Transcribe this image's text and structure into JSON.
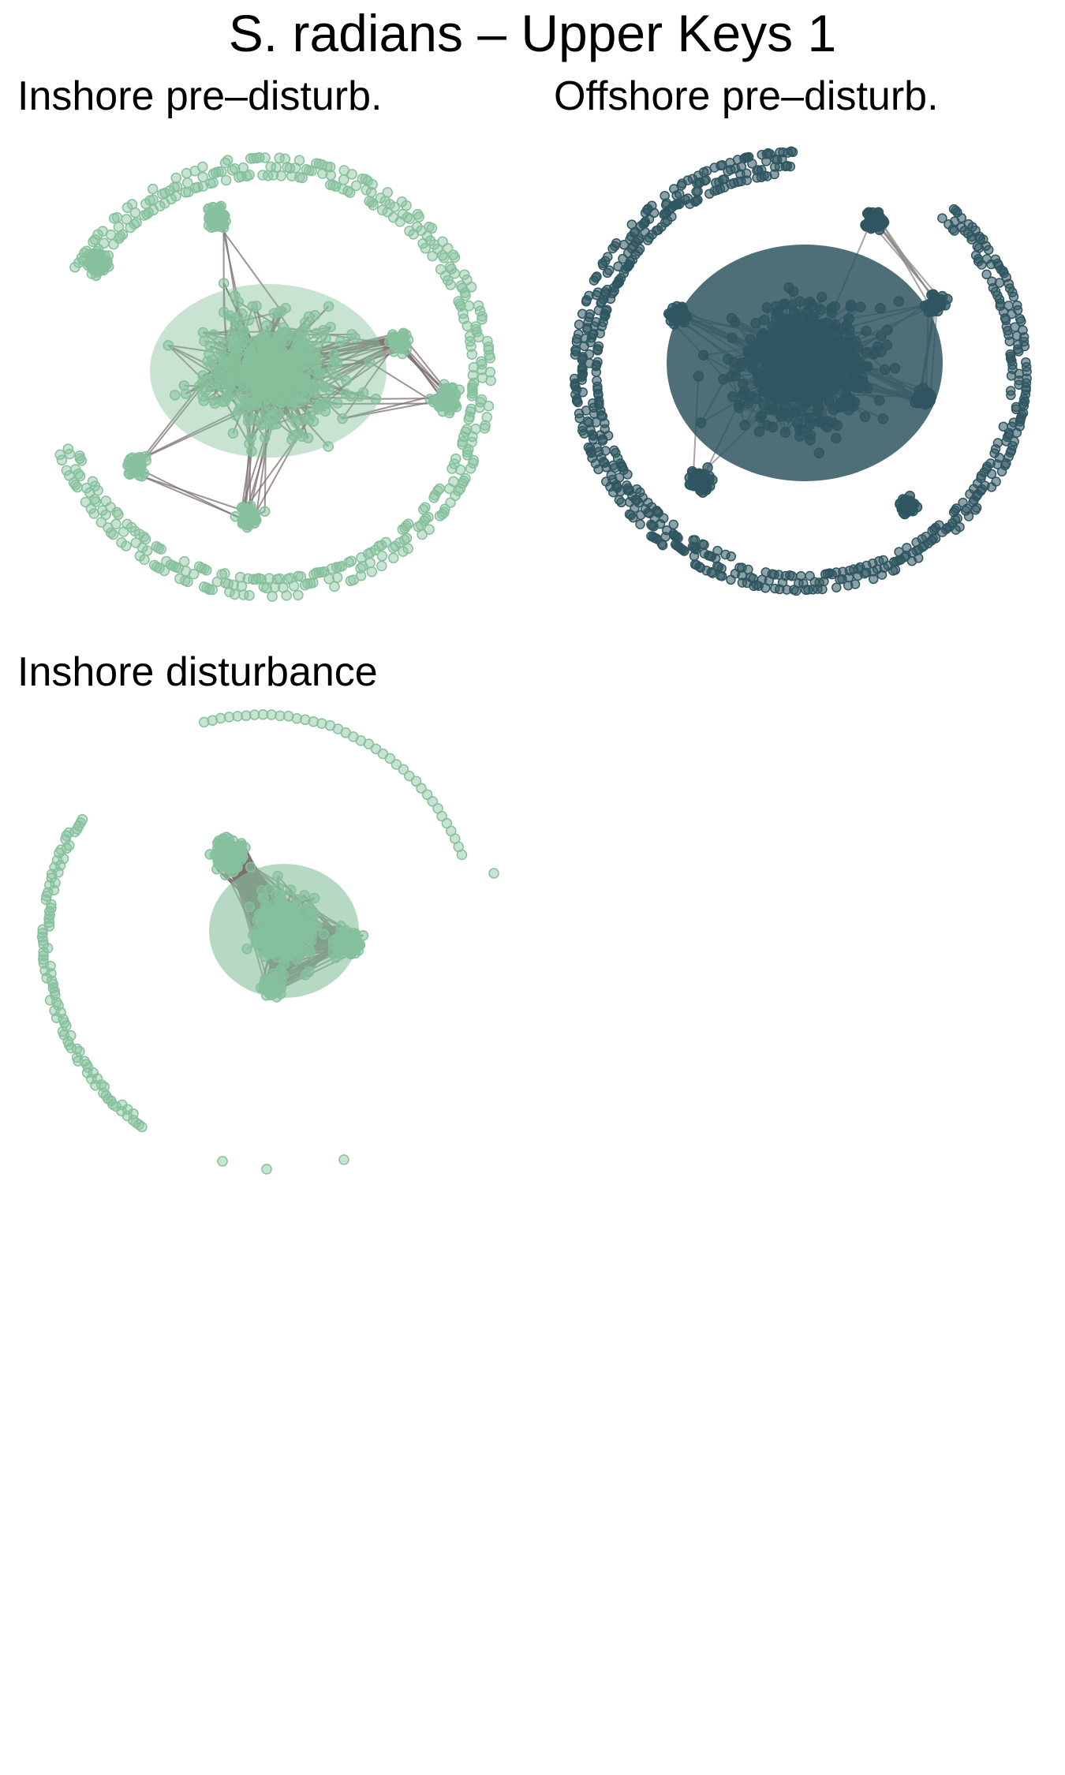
{
  "figure": {
    "title": "S. radians – Upper Keys 1"
  },
  "panels": [
    {
      "label": "Inshore pre–disturb.",
      "node_color": "#86c09c",
      "edge_color": "#7c6f6f"
    },
    {
      "label": "Offshore pre–disturb.",
      "node_color": "#2f5660",
      "edge_color": "#8a8585"
    },
    {
      "label": "Inshore disturbance",
      "node_color": "#86c09c",
      "edge_color": "#7c6f6f"
    }
  ]
}
